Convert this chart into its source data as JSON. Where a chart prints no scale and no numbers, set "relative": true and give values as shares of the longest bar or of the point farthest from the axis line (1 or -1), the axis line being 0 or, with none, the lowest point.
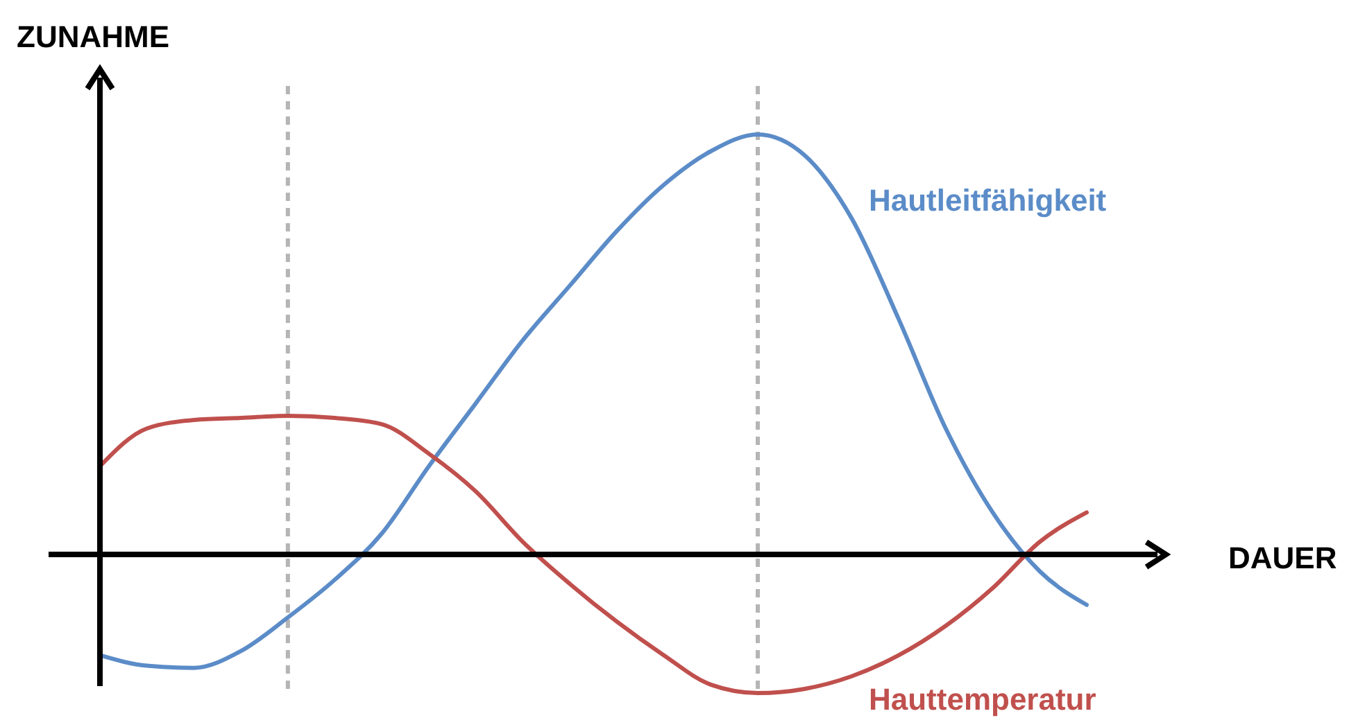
{
  "chart_data": {
    "type": "line",
    "relative": true,
    "xlabel": "DAUER",
    "ylabel": "ZUNAHME",
    "legend": false,
    "marker": "none",
    "line_style": "solid",
    "categories": [
      null,
      null,
      null,
      null,
      null,
      null,
      null,
      null,
      null,
      null,
      null,
      null,
      null,
      null,
      null,
      null,
      null,
      null,
      null,
      null,
      null,
      null
    ],
    "series": [
      {
        "name": "Hautleitfähigkeit",
        "color": "#5b8cc8",
        "values": [
          -0.24,
          -0.265,
          -0.27,
          -0.23,
          -0.15,
          -0.06,
          0.05,
          0.21,
          0.36,
          0.51,
          0.64,
          0.77,
          0.88,
          0.96,
          1,
          0.95,
          0.8,
          0.56,
          0.3,
          0.1,
          -0.04,
          -0.12
        ]
      },
      {
        "name": "Hauttemperatur",
        "color": "#c0504d",
        "values": [
          0.21,
          0.3,
          0.32,
          0.325,
          0.33,
          0.325,
          0.31,
          0.24,
          0.15,
          0.03,
          -0.07,
          -0.16,
          -0.24,
          -0.31,
          -0.33,
          -0.32,
          -0.29,
          -0.24,
          -0.17,
          -0.08,
          0.03,
          0.1
        ]
      }
    ]
  }
}
